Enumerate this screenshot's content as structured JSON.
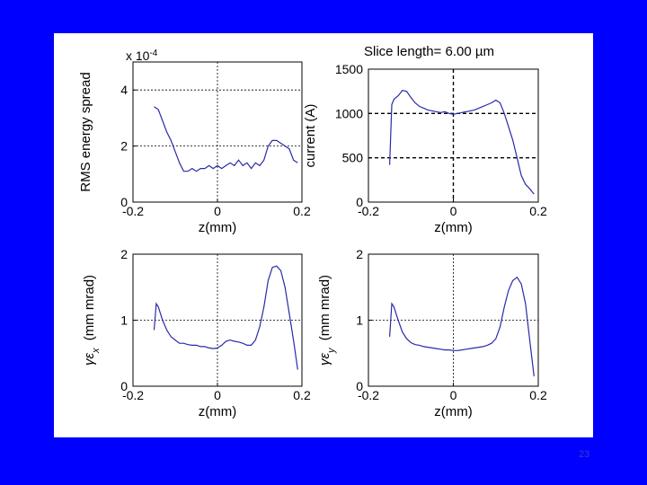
{
  "slide": {
    "page_number": "23"
  },
  "header": {
    "slice_length": "Slice length=  6.00 µm"
  },
  "colors": {
    "background": "#0000FF",
    "figure": "#FFFFFF",
    "series": "#2a2aa8",
    "axes": "#000000"
  },
  "chart_data": [
    {
      "type": "line",
      "ylabel": "RMS energy spread",
      "xlabel": "z(mm)",
      "exponent_label": "x 10",
      "exponent_power": "-4",
      "xlim": [
        -0.2,
        0.2
      ],
      "ylim": [
        0,
        5
      ],
      "xticks": [
        "-0.2",
        "0",
        "0.2"
      ],
      "yticks": [
        "0",
        "2",
        "4"
      ],
      "ref_lines_y": [
        2,
        4
      ],
      "x": [
        -0.15,
        -0.14,
        -0.13,
        -0.12,
        -0.11,
        -0.1,
        -0.09,
        -0.08,
        -0.07,
        -0.06,
        -0.05,
        -0.04,
        -0.03,
        -0.02,
        -0.01,
        0,
        0.01,
        0.02,
        0.03,
        0.04,
        0.05,
        0.06,
        0.07,
        0.08,
        0.09,
        0.1,
        0.11,
        0.12,
        0.13,
        0.14,
        0.15,
        0.16,
        0.17,
        0.18,
        0.19
      ],
      "y": [
        3.4,
        3.3,
        2.9,
        2.5,
        2.2,
        1.8,
        1.4,
        1.1,
        1.1,
        1.2,
        1.1,
        1.2,
        1.2,
        1.3,
        1.2,
        1.3,
        1.2,
        1.3,
        1.4,
        1.3,
        1.5,
        1.3,
        1.4,
        1.2,
        1.4,
        1.3,
        1.5,
        2.0,
        2.2,
        2.2,
        2.1,
        2.0,
        1.9,
        1.5,
        1.4
      ]
    },
    {
      "type": "line",
      "ylabel": "current (A)",
      "xlabel": "z(mm)",
      "xlim": [
        -0.2,
        0.2
      ],
      "ylim": [
        0,
        1500
      ],
      "xticks": [
        "-0.2",
        "0",
        "0.2"
      ],
      "yticks": [
        "0",
        "500",
        "1000",
        "1500"
      ],
      "ref_lines_y": [
        500,
        1000
      ],
      "x": [
        -0.15,
        -0.145,
        -0.14,
        -0.13,
        -0.12,
        -0.11,
        -0.1,
        -0.09,
        -0.08,
        -0.07,
        -0.06,
        -0.05,
        -0.04,
        -0.03,
        -0.02,
        -0.01,
        0,
        0.01,
        0.02,
        0.03,
        0.04,
        0.05,
        0.06,
        0.07,
        0.08,
        0.09,
        0.1,
        0.11,
        0.12,
        0.13,
        0.14,
        0.15,
        0.16,
        0.17,
        0.18,
        0.19
      ],
      "y": [
        420,
        1100,
        1160,
        1200,
        1260,
        1250,
        1180,
        1120,
        1080,
        1060,
        1040,
        1030,
        1020,
        1010,
        1020,
        1000,
        990,
        1000,
        1010,
        1020,
        1030,
        1040,
        1060,
        1080,
        1100,
        1120,
        1150,
        1120,
        1000,
        850,
        700,
        500,
        300,
        200,
        150,
        90
      ]
    },
    {
      "type": "line",
      "ylabel": "γε",
      "ylabel_sub": "x",
      "ylabel_unit": "(mm mrad)",
      "xlabel": "z(mm)",
      "xlim": [
        -0.2,
        0.2
      ],
      "ylim": [
        0,
        2
      ],
      "xticks": [
        "-0.2",
        "0",
        "0.2"
      ],
      "yticks": [
        "0",
        "1",
        "2"
      ],
      "ref_lines_y": [
        1
      ],
      "x": [
        -0.15,
        -0.145,
        -0.14,
        -0.13,
        -0.12,
        -0.11,
        -0.1,
        -0.09,
        -0.08,
        -0.07,
        -0.06,
        -0.05,
        -0.04,
        -0.03,
        -0.02,
        -0.01,
        0,
        0.01,
        0.02,
        0.03,
        0.04,
        0.05,
        0.06,
        0.07,
        0.08,
        0.09,
        0.1,
        0.11,
        0.12,
        0.13,
        0.14,
        0.15,
        0.16,
        0.17,
        0.18,
        0.19
      ],
      "y": [
        0.85,
        1.25,
        1.2,
        1.0,
        0.85,
        0.75,
        0.7,
        0.65,
        0.65,
        0.63,
        0.62,
        0.62,
        0.6,
        0.6,
        0.58,
        0.57,
        0.58,
        0.62,
        0.68,
        0.7,
        0.68,
        0.67,
        0.65,
        0.62,
        0.62,
        0.7,
        0.9,
        1.2,
        1.6,
        1.8,
        1.82,
        1.75,
        1.5,
        1.1,
        0.7,
        0.25
      ]
    },
    {
      "type": "line",
      "ylabel": "γε",
      "ylabel_sub": "y",
      "ylabel_unit": "(mm mrad)",
      "xlabel": "z(mm)",
      "xlim": [
        -0.2,
        0.2
      ],
      "ylim": [
        0,
        2
      ],
      "xticks": [
        "-0.2",
        "0",
        "0.2"
      ],
      "yticks": [
        "0",
        "1",
        "2"
      ],
      "ref_lines_y": [
        1
      ],
      "x": [
        -0.15,
        -0.145,
        -0.14,
        -0.13,
        -0.12,
        -0.11,
        -0.1,
        -0.09,
        -0.08,
        -0.07,
        -0.06,
        -0.05,
        -0.04,
        -0.03,
        -0.02,
        -0.01,
        0,
        0.01,
        0.02,
        0.03,
        0.04,
        0.05,
        0.06,
        0.07,
        0.08,
        0.09,
        0.1,
        0.11,
        0.12,
        0.13,
        0.14,
        0.15,
        0.16,
        0.17,
        0.18,
        0.19
      ],
      "y": [
        0.75,
        1.25,
        1.2,
        1.0,
        0.82,
        0.72,
        0.66,
        0.63,
        0.62,
        0.6,
        0.59,
        0.58,
        0.57,
        0.56,
        0.55,
        0.55,
        0.54,
        0.54,
        0.55,
        0.56,
        0.57,
        0.58,
        0.59,
        0.6,
        0.62,
        0.65,
        0.72,
        0.9,
        1.2,
        1.45,
        1.6,
        1.65,
        1.55,
        1.25,
        0.7,
        0.15
      ]
    }
  ]
}
